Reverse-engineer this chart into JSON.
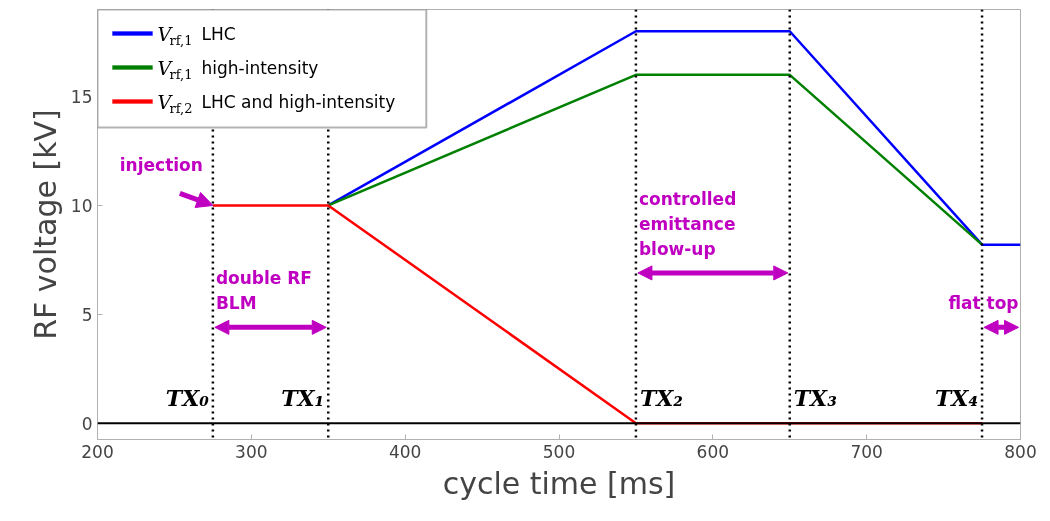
{
  "chart_data": {
    "type": "line",
    "xlabel": "cycle time [ms]",
    "ylabel": "RF voltage [kV]",
    "xlim": [
      200,
      800
    ],
    "ylim": [
      -0.75,
      19
    ],
    "xticks": [
      200,
      300,
      400,
      500,
      600,
      700,
      800
    ],
    "yticks": [
      0,
      5,
      10,
      15
    ],
    "grid": false,
    "legend": "top left",
    "marker": "none",
    "line_style": "solid",
    "series": [
      {
        "name": "V$_{rf,1}$ LHC",
        "color": "#0000ff",
        "x": [
          350,
          550,
          650,
          775,
          800
        ],
        "values": [
          10,
          18,
          18,
          8.2,
          8.2
        ]
      },
      {
        "name": "V$_{rf,1}$ high-intensity",
        "color": "#008000",
        "x": [
          350,
          550,
          650,
          775
        ],
        "values": [
          10,
          16,
          16,
          8.2
        ]
      },
      {
        "name": "V$_{rf,2}$ LHC and high-intensity",
        "color": "#ff0000",
        "x": [
          275,
          350,
          550,
          775
        ],
        "values": [
          10,
          10,
          0,
          0
        ]
      }
    ],
    "ref_lines": [
      {
        "axis": "y",
        "value": 0,
        "color": "#000000",
        "line_style": "solid"
      },
      {
        "axis": "x",
        "value": 275,
        "label": "TX₀",
        "color": "#000000",
        "line_style": "dotted"
      },
      {
        "axis": "x",
        "value": 350,
        "label": "TX₁",
        "color": "#000000",
        "line_style": "dotted"
      },
      {
        "axis": "x",
        "value": 550,
        "label": "TX₂",
        "color": "#000000",
        "line_style": "dotted"
      },
      {
        "axis": "x",
        "value": 650,
        "label": "TX₃",
        "color": "#000000",
        "line_style": "dotted"
      },
      {
        "axis": "x",
        "value": 775,
        "label": "TX₄",
        "color": "#000000",
        "line_style": "dotted"
      }
    ],
    "annotations": [
      {
        "text": "injection",
        "x": 275,
        "y": 10
      },
      {
        "text": "double RF\nBLM",
        "x": 275,
        "y": 4.4
      },
      {
        "text": "controlled\nemittance\nblow-up",
        "x": 550,
        "y": 6.9
      },
      {
        "text": "flat top",
        "x": 775,
        "y": 4.4
      }
    ]
  }
}
